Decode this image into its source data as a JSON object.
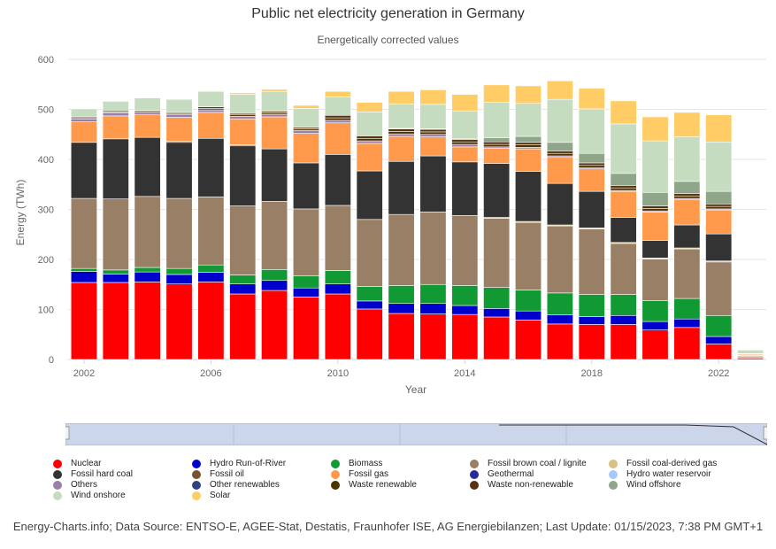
{
  "title": "Public net electricity generation in Germany",
  "subtitle": "Energetically corrected values",
  "footer": "Energy-Charts.info; Data Source: ENTSO-E, AGEE-Stat, Destatis, Fraunhofer ISE, AG Energiebilanzen; Last Update: 01/15/2023, 7:38 PM GMT+1",
  "colors": {
    "Nuclear": "#ff0000",
    "Hydro Run-of-River": "#0000cc",
    "Biomass": "#119933",
    "Fossil brown coal / lignite": "#997f66",
    "Fossil coal-derived gas": "#d9bf80",
    "Fossil hard coal": "#333333",
    "Fossil oil": "#7a5230",
    "Fossil gas": "#ff9a4d",
    "Geothermal": "#2a2a99",
    "Hydro water reservoir": "#a6c8ff",
    "Others": "#9a7faa",
    "Other renewables": "#334080",
    "Waste renewable": "#4d3300",
    "Waste non-renewable": "#553311",
    "Wind offshore": "#8fa68a",
    "Wind onshore": "#c6dcc0",
    "Solar": "#ffcc66"
  },
  "legend_items": [
    "Nuclear",
    "Hydro Run-of-River",
    "Biomass",
    "Fossil brown coal / lignite",
    "Fossil coal-derived gas",
    "Fossil hard coal",
    "Fossil oil",
    "Fossil gas",
    "Geothermal",
    "Hydro water reservoir",
    "Others",
    "Other renewables",
    "Waste renewable",
    "Waste non-renewable",
    "Wind offshore",
    "Wind onshore",
    "Solar"
  ],
  "chart_data": {
    "type": "bar",
    "stacked": true,
    "ylabel": "Energy (TWh)",
    "xlabel": "Year",
    "ylim": [
      0,
      600
    ],
    "yticks": [
      0,
      100,
      200,
      300,
      400,
      500,
      600
    ],
    "xticks": [
      "2002",
      "2006",
      "2010",
      "2014",
      "2018",
      "2022"
    ],
    "grid": true,
    "legend_position": "bottom",
    "categories": [
      "2002",
      "2003",
      "2004",
      "2005",
      "2006",
      "2007",
      "2008",
      "2009",
      "2010",
      "2011",
      "2012",
      "2013",
      "2014",
      "2015",
      "2016",
      "2017",
      "2018",
      "2019",
      "2020",
      "2021",
      "2022",
      "2023"
    ],
    "series": [
      {
        "name": "Nuclear",
        "values": [
          154,
          154,
          155,
          151,
          155,
          131,
          138,
          125,
          131,
          101,
          92,
          91,
          90,
          85,
          79,
          71,
          70,
          70,
          59,
          64,
          31,
          3
        ]
      },
      {
        "name": "Hydro Run-of-River",
        "values": [
          22,
          17,
          20,
          19,
          19,
          20,
          20,
          18,
          20,
          16,
          20,
          21,
          18,
          17,
          18,
          18,
          16,
          18,
          17,
          17,
          15,
          1
        ]
      },
      {
        "name": "Biomass",
        "values": [
          6,
          8,
          9,
          12,
          15,
          18,
          22,
          24,
          27,
          29,
          36,
          38,
          40,
          42,
          42,
          44,
          44,
          42,
          42,
          41,
          42,
          2
        ]
      },
      {
        "name": "Fossil brown coal / lignite",
        "values": [
          140,
          142,
          142,
          140,
          136,
          138,
          136,
          134,
          130,
          134,
          142,
          145,
          140,
          138,
          135,
          134,
          131,
          102,
          83,
          99,
          107,
          2
        ]
      },
      {
        "name": "Fossil coal-derived gas",
        "values": [
          0,
          0,
          0,
          0,
          0,
          0,
          0,
          0,
          0,
          0,
          0,
          0,
          0,
          2,
          2,
          2,
          2,
          2,
          2,
          2,
          2,
          0
        ]
      },
      {
        "name": "Fossil hard coal",
        "values": [
          112,
          120,
          118,
          112,
          117,
          120,
          105,
          92,
          102,
          97,
          106,
          112,
          107,
          108,
          100,
          83,
          73,
          50,
          35,
          46,
          54,
          1
        ]
      },
      {
        "name": "Fossil oil",
        "values": [
          0,
          0,
          0,
          2,
          0,
          2,
          0,
          0,
          0,
          0,
          0,
          0,
          0,
          0,
          0,
          0,
          0,
          0,
          0,
          0,
          0,
          0
        ]
      },
      {
        "name": "Fossil gas",
        "values": [
          41,
          46,
          45,
          48,
          52,
          52,
          64,
          59,
          63,
          55,
          50,
          38,
          30,
          30,
          45,
          52,
          45,
          52,
          57,
          51,
          48,
          2
        ]
      },
      {
        "name": "Geothermal",
        "values": [
          0,
          0,
          0,
          0,
          0,
          0,
          0,
          0,
          0,
          0,
          0,
          0,
          0,
          0,
          0,
          0,
          0,
          0,
          0,
          0,
          0,
          0
        ]
      },
      {
        "name": "Hydro water reservoir",
        "values": [
          0,
          0,
          0,
          0,
          0,
          0,
          0,
          0,
          0,
          0,
          0,
          0,
          0,
          0,
          0,
          0,
          0,
          0,
          0,
          0,
          0,
          0
        ]
      },
      {
        "name": "Others",
        "values": [
          6,
          6,
          5,
          6,
          5,
          5,
          5,
          6,
          5,
          5,
          5,
          5,
          5,
          3,
          3,
          3,
          2,
          2,
          2,
          2,
          2,
          0
        ]
      },
      {
        "name": "Other renewables",
        "values": [
          0,
          0,
          0,
          0,
          0,
          0,
          0,
          0,
          0,
          0,
          0,
          0,
          0,
          0,
          0,
          0,
          0,
          0,
          0,
          0,
          0,
          0
        ]
      },
      {
        "name": "Waste renewable",
        "values": [
          2,
          2,
          2,
          2,
          3,
          3,
          3,
          3,
          5,
          5,
          5,
          5,
          5,
          5,
          5,
          5,
          5,
          5,
          5,
          5,
          5,
          0
        ]
      },
      {
        "name": "Waste non-renewable",
        "values": [
          2,
          2,
          2,
          2,
          3,
          3,
          3,
          3,
          5,
          5,
          5,
          5,
          5,
          5,
          5,
          5,
          5,
          5,
          5,
          5,
          5,
          0
        ]
      },
      {
        "name": "Wind offshore",
        "values": [
          0,
          0,
          0,
          0,
          0,
          0,
          0,
          0,
          0,
          0,
          1,
          1,
          1,
          8,
          12,
          17,
          19,
          24,
          27,
          24,
          25,
          1
        ]
      },
      {
        "name": "Wind onshore",
        "values": [
          16,
          19,
          25,
          26,
          30,
          38,
          40,
          38,
          37,
          48,
          49,
          49,
          56,
          71,
          66,
          86,
          89,
          99,
          103,
          89,
          99,
          7
        ]
      },
      {
        "name": "Solar",
        "values": [
          0,
          0,
          1,
          1,
          2,
          3,
          4,
          6,
          11,
          19,
          25,
          29,
          33,
          35,
          35,
          37,
          41,
          46,
          48,
          49,
          54,
          1
        ]
      }
    ]
  }
}
